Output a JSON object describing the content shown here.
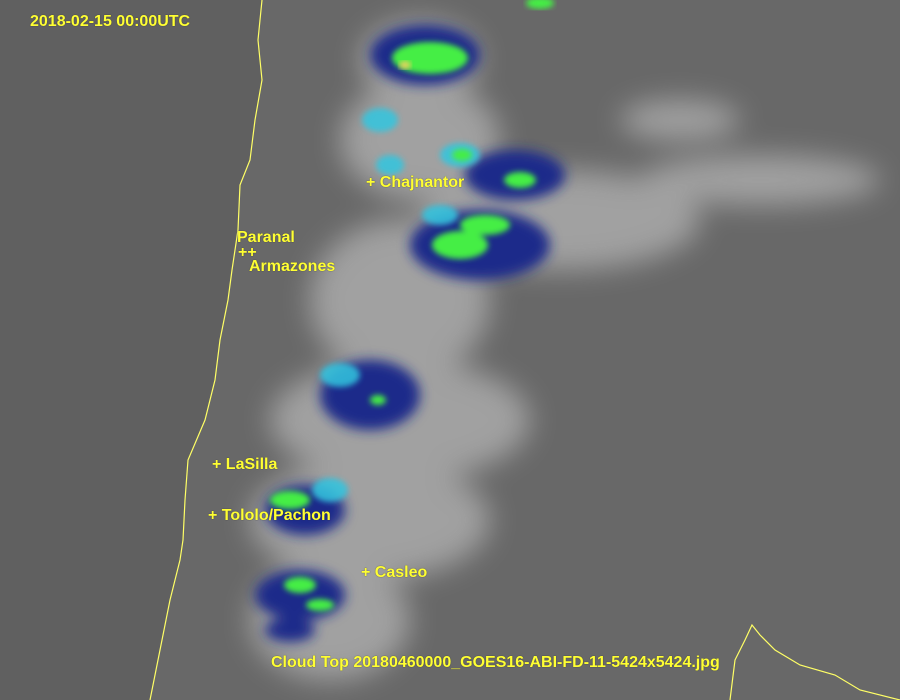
{
  "timestamp": "2018-02-15 00:00UTC",
  "caption": "Cloud Top 20180460000_GOES16-ABI-FD-11-5424x5424.jpg",
  "sites": [
    {
      "name": "Chajnantor",
      "label": "+ Chajnantor"
    },
    {
      "name": "Paranal",
      "label": "Paranal"
    },
    {
      "name": "Armazones",
      "label": "Armazones",
      "marker": "++"
    },
    {
      "name": "LaSilla",
      "label": "+ LaSilla"
    },
    {
      "name": "Tololo/Pachon",
      "label": "+ Tololo/Pachon"
    },
    {
      "name": "Casleo",
      "label": "+ Casleo"
    }
  ],
  "colors": {
    "label": "#ffff33",
    "coastline": "#ffff66",
    "ocean": "#5f5f5f",
    "land": "#6a6a6a",
    "cloud_cold": "#1a2a8a",
    "cloud_cyan": "#33c6e0",
    "cloud_top": "#44ee44"
  }
}
